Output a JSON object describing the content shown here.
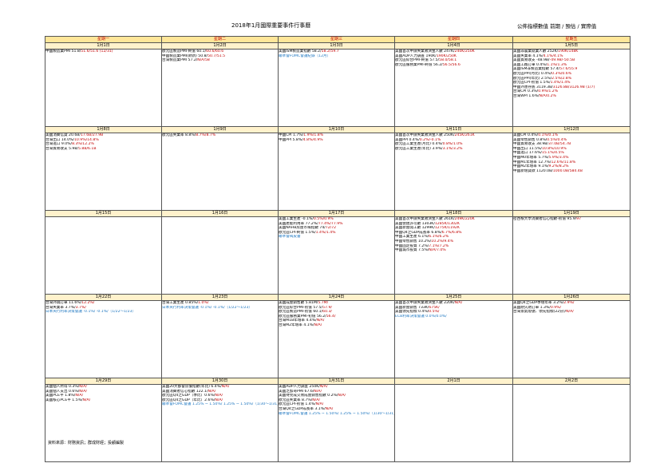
{
  "title": "2018年1月國際重要事件行事曆",
  "legend": "公佈指標數值  前期 / 預估 / 實際值",
  "source": "資料來源：財務資訊；群成財經；投顧編製",
  "weekdays": [
    "星期一",
    "星期二",
    "星期三",
    "星期四",
    "星期五"
  ],
  "weeks": [
    {
      "dates": [
        "1月1日",
        "1月2日",
        "1月3日",
        "1月4日",
        "1月5日"
      ],
      "cells": [
        [
          {
            "t": "中國製造業PMI 51.8/",
            "p": "51.6",
            "a": "/51.6 (12/31)"
          }
        ],
        [
          {
            "t": "歐元區製造PMI-終值 60.1/",
            "p": "60.6",
            "a": "/60.6"
          },
          {
            "t": "中國製造業PMI(財新) 50.8/",
            "p": "50.7",
            "a": "/51.5"
          },
          {
            "t": "台灣製造業PMI 57.2/",
            "p": "N/A",
            "a": "/58"
          }
        ],
        [
          {
            "t": "美國ISM製造業指數 58.2/",
            "p": "58.2",
            "a": "/59.7"
          },
          {
            "b": "聯準會FOMC會議紀錄（12月）"
          }
        ],
        [
          {
            "t": "美國首次申請失業救濟金人數 247K/",
            "p": "240K",
            "a": "/250K"
          },
          {
            "t": "美國ADP人力調查 190K/",
            "p": "190K",
            "a": "/250K"
          },
          {
            "t": "歐元區綜合PMI-終值 57.5/",
            "p": "58.0",
            "a": "/58.1"
          },
          {
            "t": "歐元區服務業PMI-終值 56.2/",
            "p": "56.5",
            "a": "/56.6"
          }
        ],
        [
          {
            "t": "美國非農業就業人數 252K/",
            "p": "190K",
            "a": "/148K"
          },
          {
            "t": "美國失業率 4.1%/",
            "p": "4.1%",
            "a": "/4.1%"
          },
          {
            "t": "美國貿易收支 -48.9B/",
            "p": "-49.9B",
            "a": "/-50.5B"
          },
          {
            "t": "美國工廠訂單 0.4%/",
            "p": "1.1%",
            "a": "/1.3%"
          },
          {
            "t": "美國ISM非製造業指數 57.4/",
            "p": "57.6",
            "a": "/55.9"
          },
          {
            "t": "歐元區PPI(月比) 0.4%/",
            "p": "0.3%",
            "a": "/0.6%"
          },
          {
            "t": "歐元區PPI(年比) 2.5%/",
            "p": "2.5%",
            "a": "/2.8%"
          },
          {
            "t": "歐元區CPI-初值 1.5%/",
            "p": "1.4%",
            "a": "/1.4%"
          },
          {
            "t": "中國外匯存底 3119.3B/",
            "p": "3126.8B",
            "a": "/3126.9B (1/7)"
          },
          {
            "t": "台灣CPI 0.3%/",
            "p": "0.9%",
            "a": "/1.2%"
          },
          {
            "t": "台灣WPI 1.6%/",
            "p": "N/A",
            "a": "/0.2%"
          }
        ]
      ]
    },
    {
      "dates": [
        "1月8日",
        "1月9日",
        "1月10日",
        "1月11日",
        "1月12日"
      ],
      "cells": [
        [
          {
            "t": "美國消費信貸 20.6B/",
            "p": "17.6B",
            "a": "/27.9B"
          },
          {
            "t": "台灣出口 14.0%/",
            "p": "10.9%",
            "a": "/14.8%"
          },
          {
            "t": "台灣進口 9.0%/",
            "p": "8.3%",
            "a": "/12.2%"
          },
          {
            "t": "台灣貿易收支 5.9B/",
            "p": "5.8B",
            "a": "/6.1B"
          }
        ],
        [
          {
            "t": "歐元區失業率 8.8%/",
            "p": "8.7%",
            "a": "/8.7%"
          }
        ],
        [
          {
            "t": "中國CPI 1.7%/",
            "p": "1.9%",
            "a": "/1.8%"
          },
          {
            "t": "中國PPI 5.8%/",
            "p": "4.8%",
            "a": "/4.9%"
          }
        ],
        [
          {
            "t": "美國首次申請失業救濟金人數 250K/",
            "p": "245K",
            "a": "/261K"
          },
          {
            "t": "美國PPI 0.4%/",
            "p": "0.2%",
            "a": "/-0.1%"
          },
          {
            "t": "歐元區工業生產(月比) 0.4%/",
            "p": "0.8%",
            "a": "/1.0%"
          },
          {
            "t": "歐元區工業生產(年比) 3.9%/",
            "p": "3.1%",
            "a": "/3.2%"
          }
        ],
        [
          {
            "t": "美國CPI 0.4%/",
            "p": "0.1%",
            "a": "/0.1%"
          },
          {
            "t": "美國零售銷售 0.8%/",
            "p": "0.5%",
            "a": "/0.4%"
          },
          {
            "t": "中國貿易收支 38.9B/",
            "p": "37.0B",
            "a": "/54.7B"
          },
          {
            "t": "中國出口 11.5%/",
            "p": "10.8%",
            "a": "/10.9%"
          },
          {
            "t": "中國進口 17.6%/",
            "p": "15.1%",
            "a": "/4.5%"
          },
          {
            "t": "中國M0年增率 5.7%/",
            "p": "5.9%",
            "a": "/3.4%"
          },
          {
            "t": "中國M1年增率 12.7%/",
            "p": "12.6%",
            "a": "/11.8%"
          },
          {
            "t": "中國M2年增率 9.1%/",
            "p": "9.2%",
            "a": "/8.2%"
          },
          {
            "t": "中國新增貸款 1120.0B/",
            "p": "1000.0B",
            "a": "/584.4B"
          }
        ]
      ]
    },
    {
      "dates": [
        "1月15日",
        "1月16日",
        "1月17日",
        "1月18日",
        "1月19日"
      ],
      "cells": [
        [],
        [],
        [
          {
            "t": "美國工業生產 -0.1%/",
            "p": "0.5%",
            "a": "/0.9%"
          },
          {
            "t": "美國產能利用率 77.2%/",
            "p": "77.4%",
            "a": "/77.9%"
          },
          {
            "t": "美國NAHB房屋市場指數 74/",
            "p": "72",
            "a": "/72"
          },
          {
            "t": "歐元區CPI-終值 1.5%/",
            "p": "1.4%",
            "a": "/1.4%"
          },
          {
            "b": "聯準會褐皮書"
          }
        ],
        [
          {
            "t": "美國首次申請失業救濟金人數 261K/",
            "p": "249K",
            "a": "/220K"
          },
          {
            "t": "美國營建許可數 1303K/",
            "p": "1285K",
            "a": "/1302K"
          },
          {
            "t": "美國新屋開工數 1299K/",
            "p": "1275K",
            "a": "/1192K"
          },
          {
            "t": "中國Q4之GDP成長率 6.8%/",
            "p": "6.7%",
            "a": "/6.8%"
          },
          {
            "t": "中國工業生產 6.1%/",
            "p": "6.1%",
            "a": "/6.2%"
          },
          {
            "t": "中國零售銷售 10.2%/",
            "p": "10.2%",
            "a": "/9.4%"
          },
          {
            "t": "中國固定投資 7.2%/",
            "p": "7.1%",
            "a": "/7.2%"
          },
          {
            "t": "中國城市投資 7.5%/",
            "p": "N/A",
            "a": "/7.0%"
          }
        ],
        [
          {
            "t": "密西根大學消費者信心指數-初值 95.9/",
            "p": "97",
            "a": ""
          }
        ]
      ]
    },
    {
      "dates": [
        "1月22日",
        "1月23日",
        "1月24日",
        "1月25日",
        "1月26日"
      ],
      "cells": [
        [
          {
            "t": "台灣外銷訂單 11.6%/",
            "p": "12.2%",
            "a": "/"
          },
          {
            "t": "台灣失業率 3.7%/",
            "p": "3.7%",
            "a": "/"
          },
          {
            "b": "日本央行利率決策會議 -0.1%/ -0.1%/（1/22～1/23）"
          }
        ],
        [
          {
            "t": "台灣工業生產 0.85%/",
            "p": "1.0%",
            "a": "/"
          },
          {
            "b": "日本央行利率決策會議 -0.1%/ -0.1%/（1/22～1/23）"
          }
        ],
        [
          {
            "t": "美國成屋銷售數 5.81M/",
            "p": "5.7M",
            "a": "/"
          },
          {
            "t": "歐元區綜合PMI-初值 57.5/",
            "p": "57.9",
            "a": "/"
          },
          {
            "t": "歐元區製造PMI-初值 60.1/",
            "p": "60.3",
            "a": "/"
          },
          {
            "t": "歐元區服務業PMI-初值 56.2/",
            "p": "56.4",
            "a": "/"
          },
          {
            "t": "台灣M1B年增率 4.4%/",
            "p": "N/A",
            "a": "/"
          },
          {
            "t": "台灣M2年增率 4.1%/",
            "p": "N/A",
            "a": "/"
          }
        ],
        [
          {
            "t": "美國首次申請失業救濟金人數 220K/",
            "p": "N/A",
            "a": "/"
          },
          {
            "t": "美國新屋銷售 733K/",
            "p": "675K",
            "a": "/"
          },
          {
            "t": "美國領先指標 0.4%/",
            "p": "0.5%",
            "a": "/"
          },
          {
            "b": "ECB利率決策會議 0.0%/0.0%/"
          }
        ],
        [
          {
            "t": "美國Q4之GDP季增年率 3.2%/",
            "p": "2.9%",
            "a": "/"
          },
          {
            "t": "美國耐久財訂單 1.3%/",
            "p": "0.9%",
            "a": "/"
          },
          {
            "t": "台灣景氣燈號、領先指標(22分)/",
            "p": "N/A",
            "a": "/"
          }
        ]
      ]
    },
    {
      "dates": [
        "1月29日",
        "1月30日",
        "1月31日",
        "2月1日",
        "2月2日"
      ],
      "cells": [
        [
          {
            "t": "美國個人所得 0.3%/",
            "p": "N/A",
            "a": "/"
          },
          {
            "t": "美國個人支出 0.6%/",
            "p": "N/A",
            "a": "/"
          },
          {
            "t": "美國PCE平 1.8%/",
            "p": "N/A",
            "a": "/"
          },
          {
            "t": "美國核心PCE平 1.5%/",
            "p": "N/A",
            "a": "/"
          }
        ],
        [
          {
            "t": "美國20大都會房價指數(年比) 6.4%/",
            "p": "N/A",
            "a": "/"
          },
          {
            "t": "美國消費者信心指數 122.1/",
            "p": "N/A",
            "a": "/"
          },
          {
            "t": "歐元區Q4之GDP（季比）0.6%/",
            "p": "N/A",
            "a": "/"
          },
          {
            "t": "歐元區Q4之GDP（年比）2.6%/",
            "p": "N/A",
            "a": "/"
          },
          {
            "b": "聯準會FOMC會議 1.25% ~ 1.50%/ 1.25% ~ 1.50%/（1/30～1/31）"
          }
        ],
        [
          {
            "t": "美國ADP人力調查 250K/",
            "p": "N/A",
            "a": "/"
          },
          {
            "t": "美國芝加哥PMI 67.6/",
            "p": "N/A",
            "a": "/"
          },
          {
            "t": "美國待完成交易成屋銷售指數 0.2%/",
            "p": "N/A",
            "a": "/"
          },
          {
            "t": "歐元區失業率 8.7%/",
            "p": "N/A",
            "a": "/"
          },
          {
            "t": "歐元區CPI-初值 1.4%/",
            "p": "N/A",
            "a": "/"
          },
          {
            "t": "台灣Q4之GDP成長率 3.1%/",
            "p": "N/A",
            "a": "/"
          },
          {
            "b": "聯準會FOMC會議 1.25% ~ 1.50%/ 1.25% ~ 1.50%/（1/30～1/31）"
          }
        ],
        [],
        []
      ]
    }
  ]
}
